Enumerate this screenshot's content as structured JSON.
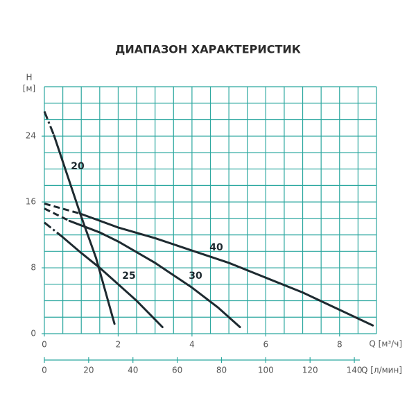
{
  "chart_data": {
    "type": "line",
    "title": "ДИАПАЗОН ХАРАКТЕРИСТИК",
    "y_label": "H",
    "y_unit": "[м]",
    "x_label": "Q [м³/ч]",
    "x2_label": "Q [л/мин]",
    "xlim": [
      0,
      9
    ],
    "xticks": [
      0,
      2,
      4,
      6,
      8
    ],
    "xgrid_step": 0.5,
    "ylim": [
      0,
      30
    ],
    "yticks": [
      0,
      8,
      16,
      24
    ],
    "ygrid_step": 2,
    "x2lim": [
      0,
      150
    ],
    "x2ticks": [
      0,
      20,
      40,
      60,
      80,
      100,
      120,
      140
    ],
    "grid": true,
    "grid_color": "#2ba79f",
    "series": [
      {
        "name": "20",
        "color": "#1e2a30",
        "extrapolated_style": "dash-dot",
        "extrapolated": {
          "x": [
            0,
            0.26
          ],
          "values": [
            27,
            24.1
          ]
        },
        "x": [
          0.26,
          1.0,
          1.4,
          1.9
        ],
        "values": [
          24.1,
          14.2,
          9.2,
          1.2
        ]
      },
      {
        "name": "25",
        "color": "#1e2a30",
        "extrapolated_style": "dash-dot",
        "extrapolated": {
          "x": [
            0,
            0.45
          ],
          "values": [
            13.5,
            11.9
          ]
        },
        "x": [
          0.45,
          1,
          1.5,
          2,
          2.5,
          3.2
        ],
        "values": [
          11.9,
          9.8,
          8.0,
          6.0,
          4.0,
          0.8
        ]
      },
      {
        "name": "30",
        "color": "#1e2a30",
        "extrapolated_style": "dashed",
        "extrapolated": {
          "x": [
            0,
            0.68
          ],
          "values": [
            15.2,
            13.7
          ]
        },
        "x": [
          0.68,
          1.5,
          2,
          3,
          4,
          4.7,
          5.3
        ],
        "values": [
          13.7,
          12.3,
          11.2,
          8.6,
          5.6,
          3.2,
          0.8
        ]
      },
      {
        "name": "40",
        "color": "#1e2a30",
        "extrapolated_style": "dashed",
        "extrapolated": {
          "x": [
            0,
            0.96
          ],
          "values": [
            15.8,
            14.6
          ]
        },
        "x": [
          0.96,
          2,
          3,
          4,
          5,
          6,
          7,
          8,
          8.9
        ],
        "values": [
          14.6,
          12.9,
          11.6,
          10.1,
          8.6,
          6.8,
          5.0,
          2.9,
          1.0
        ]
      }
    ]
  }
}
